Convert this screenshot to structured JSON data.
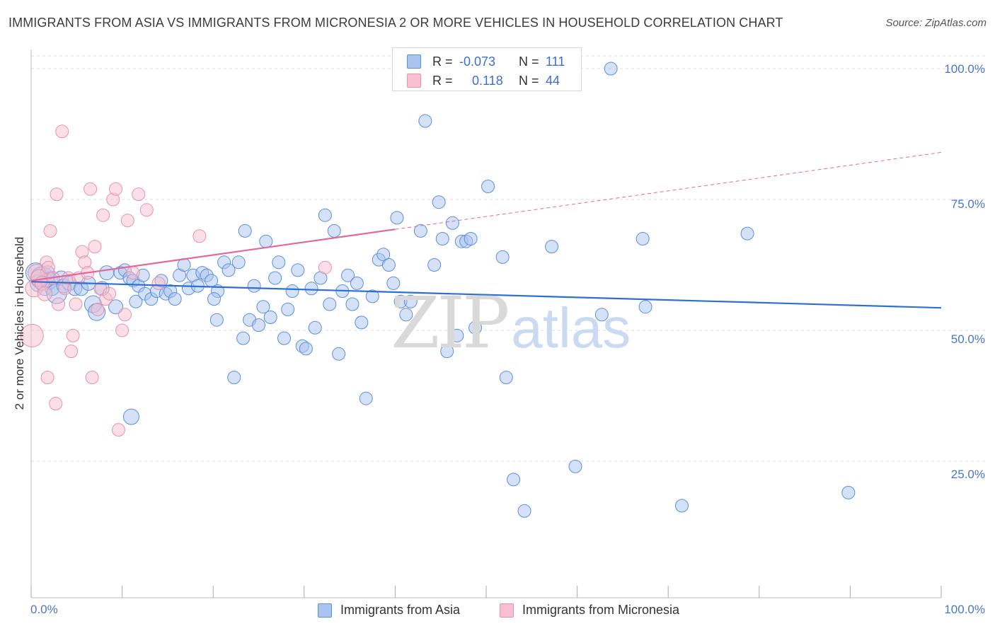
{
  "header": {
    "title": "IMMIGRANTS FROM ASIA VS IMMIGRANTS FROM MICRONESIA 2 OR MORE VEHICLES IN HOUSEHOLD CORRELATION CHART",
    "source": "Source: ZipAtlas.com"
  },
  "watermark": {
    "zip": "ZIP",
    "atlas": "atlas"
  },
  "colors": {
    "asia_fill": "#a9c4ee",
    "asia_stroke": "#5c8fdc",
    "asia_line": "#2e6fd1",
    "micro_fill": "#f7bfd0",
    "micro_stroke": "#e592ad",
    "micro_line": "#e0699a",
    "tick_text": "#4a76c6",
    "grid": "#dcdcdc"
  },
  "legend_top": {
    "rows": [
      {
        "r_label": "R =",
        "r_value": "-0.073",
        "n_label": "N =",
        "n_value": "111"
      },
      {
        "r_label": "R =",
        "r_value": "0.118",
        "n_label": "N =",
        "n_value": "44"
      }
    ]
  },
  "legend_bottom": {
    "asia": "Immigrants from Asia",
    "micronesia": "Immigrants from Micronesia"
  },
  "chart_data": {
    "type": "scatter",
    "title": "IMMIGRANTS FROM ASIA VS IMMIGRANTS FROM MICRONESIA 2 OR MORE VEHICLES IN HOUSEHOLD CORRELATION CHART",
    "xlabel": "",
    "ylabel": "2 or more Vehicles in Household",
    "xlim": [
      0,
      100
    ],
    "ylim": [
      0,
      102
    ],
    "x_tick_labels": [
      "0.0%",
      "100.0%"
    ],
    "y_ticks": [
      25,
      50,
      75,
      100
    ],
    "y_tick_labels": [
      "25.0%",
      "50.0%",
      "75.0%",
      "100.0%"
    ],
    "grid": true,
    "legend_position": "top-center",
    "series": [
      {
        "name": "Immigrants from Asia",
        "R": -0.073,
        "N": 111,
        "trend": {
          "x": [
            0,
            100
          ],
          "y": [
            59.3,
            54.3
          ],
          "style": "solid"
        },
        "points": [
          {
            "x": 0.5,
            "y": 61,
            "s": 14
          },
          {
            "x": 0.8,
            "y": 59,
            "s": 12
          },
          {
            "x": 1.2,
            "y": 60,
            "s": 16
          },
          {
            "x": 1.5,
            "y": 58,
            "s": 10
          },
          {
            "x": 1.8,
            "y": 61,
            "s": 10
          },
          {
            "x": 2.0,
            "y": 59.5,
            "s": 12
          },
          {
            "x": 2.3,
            "y": 58,
            "s": 10
          },
          {
            "x": 2.8,
            "y": 57,
            "s": 14
          },
          {
            "x": 3.3,
            "y": 60,
            "s": 10
          },
          {
            "x": 3.6,
            "y": 58.5,
            "s": 10
          },
          {
            "x": 4.2,
            "y": 59,
            "s": 10
          },
          {
            "x": 4.8,
            "y": 58,
            "s": 10
          },
          {
            "x": 5.5,
            "y": 58,
            "s": 10
          },
          {
            "x": 6.3,
            "y": 59,
            "s": 10
          },
          {
            "x": 6.8,
            "y": 55,
            "s": 12
          },
          {
            "x": 7.2,
            "y": 53.5,
            "s": 12
          },
          {
            "x": 7.8,
            "y": 58,
            "s": 10
          },
          {
            "x": 8.3,
            "y": 61,
            "s": 10
          },
          {
            "x": 9.3,
            "y": 54.5,
            "s": 10
          },
          {
            "x": 9.8,
            "y": 61,
            "s": 9
          },
          {
            "x": 10.3,
            "y": 61.5,
            "s": 9
          },
          {
            "x": 10.8,
            "y": 60,
            "s": 9
          },
          {
            "x": 11.2,
            "y": 59.5,
            "s": 9
          },
          {
            "x": 11.8,
            "y": 58.5,
            "s": 9
          },
          {
            "x": 12.3,
            "y": 60.5,
            "s": 9
          },
          {
            "x": 11.0,
            "y": 33.5,
            "s": 11
          },
          {
            "x": 11.5,
            "y": 55.5,
            "s": 9
          },
          {
            "x": 12.5,
            "y": 57,
            "s": 9
          },
          {
            "x": 13.2,
            "y": 56,
            "s": 9
          },
          {
            "x": 13.8,
            "y": 57.5,
            "s": 9
          },
          {
            "x": 14.3,
            "y": 59.5,
            "s": 9
          },
          {
            "x": 14.8,
            "y": 57,
            "s": 9
          },
          {
            "x": 15.3,
            "y": 57.5,
            "s": 9
          },
          {
            "x": 15.8,
            "y": 56,
            "s": 9
          },
          {
            "x": 16.3,
            "y": 60.5,
            "s": 9
          },
          {
            "x": 16.8,
            "y": 62.5,
            "s": 9
          },
          {
            "x": 17.3,
            "y": 58,
            "s": 9
          },
          {
            "x": 17.8,
            "y": 60.5,
            "s": 9
          },
          {
            "x": 18.3,
            "y": 58.5,
            "s": 9
          },
          {
            "x": 18.8,
            "y": 61,
            "s": 9
          },
          {
            "x": 19.3,
            "y": 60.5,
            "s": 9
          },
          {
            "x": 19.8,
            "y": 59.5,
            "s": 9
          },
          {
            "x": 20.5,
            "y": 57.5,
            "s": 9
          },
          {
            "x": 20.1,
            "y": 56,
            "s": 9
          },
          {
            "x": 20.4,
            "y": 52,
            "s": 9
          },
          {
            "x": 21.2,
            "y": 63,
            "s": 9
          },
          {
            "x": 21.7,
            "y": 61.5,
            "s": 9
          },
          {
            "x": 22.3,
            "y": 41,
            "s": 9
          },
          {
            "x": 22.8,
            "y": 63,
            "s": 9
          },
          {
            "x": 23.3,
            "y": 48.5,
            "s": 9
          },
          {
            "x": 23.5,
            "y": 69,
            "s": 9
          },
          {
            "x": 24.0,
            "y": 52,
            "s": 9
          },
          {
            "x": 24.5,
            "y": 58.5,
            "s": 9
          },
          {
            "x": 25.0,
            "y": 51,
            "s": 9
          },
          {
            "x": 25.5,
            "y": 54.5,
            "s": 9
          },
          {
            "x": 25.8,
            "y": 67,
            "s": 9
          },
          {
            "x": 26.3,
            "y": 52.5,
            "s": 9
          },
          {
            "x": 26.8,
            "y": 60,
            "s": 9
          },
          {
            "x": 27.2,
            "y": 63,
            "s": 9
          },
          {
            "x": 27.8,
            "y": 48.5,
            "s": 9
          },
          {
            "x": 28.2,
            "y": 54,
            "s": 9
          },
          {
            "x": 28.7,
            "y": 57.5,
            "s": 9
          },
          {
            "x": 29.3,
            "y": 61.5,
            "s": 9
          },
          {
            "x": 29.8,
            "y": 47,
            "s": 9
          },
          {
            "x": 30.2,
            "y": 46.5,
            "s": 9
          },
          {
            "x": 30.8,
            "y": 58,
            "s": 9
          },
          {
            "x": 31.2,
            "y": 50.5,
            "s": 9
          },
          {
            "x": 31.8,
            "y": 60,
            "s": 9
          },
          {
            "x": 32.3,
            "y": 72,
            "s": 9
          },
          {
            "x": 32.8,
            "y": 55,
            "s": 9
          },
          {
            "x": 33.3,
            "y": 69,
            "s": 9
          },
          {
            "x": 33.8,
            "y": 45.5,
            "s": 9
          },
          {
            "x": 34.2,
            "y": 57.5,
            "s": 9
          },
          {
            "x": 34.8,
            "y": 60.5,
            "s": 9
          },
          {
            "x": 35.3,
            "y": 55,
            "s": 9
          },
          {
            "x": 35.8,
            "y": 59,
            "s": 9
          },
          {
            "x": 36.3,
            "y": 51.5,
            "s": 9
          },
          {
            "x": 36.8,
            "y": 37,
            "s": 9
          },
          {
            "x": 37.5,
            "y": 56.5,
            "s": 9
          },
          {
            "x": 38.2,
            "y": 63.5,
            "s": 9
          },
          {
            "x": 38.7,
            "y": 64.5,
            "s": 9
          },
          {
            "x": 39.3,
            "y": 62.5,
            "s": 9
          },
          {
            "x": 39.8,
            "y": 59,
            "s": 9
          },
          {
            "x": 40.2,
            "y": 71.5,
            "s": 9
          },
          {
            "x": 40.6,
            "y": 55.5,
            "s": 9
          },
          {
            "x": 41.2,
            "y": 53,
            "s": 9
          },
          {
            "x": 41.7,
            "y": 55.5,
            "s": 9
          },
          {
            "x": 42.8,
            "y": 69,
            "s": 9
          },
          {
            "x": 43.3,
            "y": 90,
            "s": 9
          },
          {
            "x": 44.3,
            "y": 62.5,
            "s": 9
          },
          {
            "x": 44.8,
            "y": 74.5,
            "s": 9
          },
          {
            "x": 45.2,
            "y": 67.5,
            "s": 9
          },
          {
            "x": 45.7,
            "y": 46,
            "s": 9
          },
          {
            "x": 46.3,
            "y": 70.5,
            "s": 9
          },
          {
            "x": 46.8,
            "y": 49,
            "s": 9
          },
          {
            "x": 47.3,
            "y": 67,
            "s": 9
          },
          {
            "x": 47.8,
            "y": 67,
            "s": 9
          },
          {
            "x": 48.3,
            "y": 67.5,
            "s": 9
          },
          {
            "x": 48.8,
            "y": 50.5,
            "s": 9
          },
          {
            "x": 50.2,
            "y": 77.5,
            "s": 9
          },
          {
            "x": 51.8,
            "y": 64,
            "s": 9
          },
          {
            "x": 52.2,
            "y": 41,
            "s": 9
          },
          {
            "x": 53.0,
            "y": 21.5,
            "s": 9
          },
          {
            "x": 53.7,
            "y": 100,
            "s": 9
          },
          {
            "x": 54.2,
            "y": 15.5,
            "s": 9
          },
          {
            "x": 57.2,
            "y": 66,
            "s": 9
          },
          {
            "x": 59.8,
            "y": 24,
            "s": 9
          },
          {
            "x": 62.7,
            "y": 53,
            "s": 9
          },
          {
            "x": 63.7,
            "y": 100,
            "s": 9
          },
          {
            "x": 67.2,
            "y": 67.5,
            "s": 9
          },
          {
            "x": 67.5,
            "y": 54.5,
            "s": 9
          },
          {
            "x": 71.5,
            "y": 16.5,
            "s": 9
          },
          {
            "x": 78.7,
            "y": 68.5,
            "s": 9
          },
          {
            "x": 89.8,
            "y": 19,
            "s": 9
          }
        ]
      },
      {
        "name": "Immigrants from Micronesia",
        "R": 0.118,
        "N": 44,
        "trend": {
          "x": [
            0,
            100
          ],
          "y": [
            59.5,
            84.0
          ],
          "solid_until_x": 40,
          "style": "solid-then-dashed"
        },
        "points": [
          {
            "x": 0.1,
            "y": 49,
            "s": 16
          },
          {
            "x": 0.3,
            "y": 58,
            "s": 12
          },
          {
            "x": 0.6,
            "y": 61,
            "s": 12
          },
          {
            "x": 0.9,
            "y": 60,
            "s": 12
          },
          {
            "x": 1.2,
            "y": 59,
            "s": 10
          },
          {
            "x": 1.5,
            "y": 57,
            "s": 10
          },
          {
            "x": 1.7,
            "y": 63,
            "s": 9
          },
          {
            "x": 1.9,
            "y": 62,
            "s": 9
          },
          {
            "x": 2.1,
            "y": 69,
            "s": 9
          },
          {
            "x": 2.4,
            "y": 60,
            "s": 9
          },
          {
            "x": 2.8,
            "y": 76,
            "s": 9
          },
          {
            "x": 3.0,
            "y": 55,
            "s": 9
          },
          {
            "x": 3.4,
            "y": 88,
            "s": 9
          },
          {
            "x": 3.7,
            "y": 58,
            "s": 9
          },
          {
            "x": 4.1,
            "y": 60,
            "s": 9
          },
          {
            "x": 4.4,
            "y": 46,
            "s": 9
          },
          {
            "x": 4.6,
            "y": 49,
            "s": 9
          },
          {
            "x": 4.9,
            "y": 55,
            "s": 9
          },
          {
            "x": 5.2,
            "y": 60,
            "s": 9
          },
          {
            "x": 5.6,
            "y": 65,
            "s": 9
          },
          {
            "x": 5.9,
            "y": 63,
            "s": 9
          },
          {
            "x": 6.2,
            "y": 61,
            "s": 9
          },
          {
            "x": 6.5,
            "y": 77,
            "s": 9
          },
          {
            "x": 6.7,
            "y": 41,
            "s": 9
          },
          {
            "x": 7.0,
            "y": 66,
            "s": 9
          },
          {
            "x": 7.3,
            "y": 54,
            "s": 9
          },
          {
            "x": 7.6,
            "y": 58,
            "s": 9
          },
          {
            "x": 7.9,
            "y": 72,
            "s": 9
          },
          {
            "x": 8.2,
            "y": 56,
            "s": 9
          },
          {
            "x": 8.6,
            "y": 57,
            "s": 9
          },
          {
            "x": 9.0,
            "y": 75,
            "s": 9
          },
          {
            "x": 9.3,
            "y": 77,
            "s": 9
          },
          {
            "x": 9.6,
            "y": 31,
            "s": 9
          },
          {
            "x": 10.0,
            "y": 50,
            "s": 9
          },
          {
            "x": 10.3,
            "y": 53,
            "s": 9
          },
          {
            "x": 10.6,
            "y": 71,
            "s": 9
          },
          {
            "x": 11.2,
            "y": 61,
            "s": 9
          },
          {
            "x": 11.8,
            "y": 76,
            "s": 9
          },
          {
            "x": 12.7,
            "y": 73,
            "s": 9
          },
          {
            "x": 14.0,
            "y": 59,
            "s": 9
          },
          {
            "x": 18.5,
            "y": 68,
            "s": 9
          },
          {
            "x": 32.3,
            "y": 62,
            "s": 9
          },
          {
            "x": 1.8,
            "y": 41,
            "s": 9
          },
          {
            "x": 2.7,
            "y": 36,
            "s": 9
          }
        ]
      }
    ]
  }
}
